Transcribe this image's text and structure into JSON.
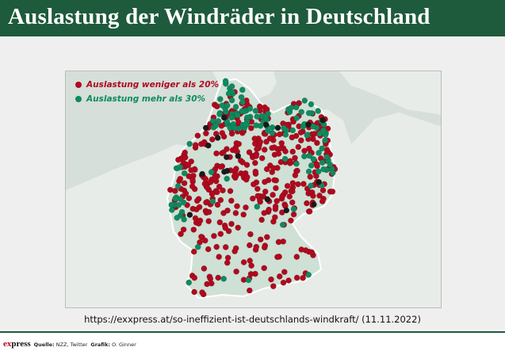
{
  "header": {
    "title": "Auslastung der Windräder in Deutschland"
  },
  "legend": [
    {
      "label": "Auslastung weniger als 20%",
      "color": "#b0091e"
    },
    {
      "label": "Auslastung mehr als 30%",
      "color": "#0f8a5f"
    }
  ],
  "colors": {
    "brand_green": "#1e5a3c",
    "low_utilization": "#b0091e",
    "high_utilization": "#0f8a5f",
    "germany_fill": "#cfe0d5",
    "sea": "#d6dfd9",
    "neighbor_land": "#e8ece9"
  },
  "source_url": "https://exxpress.at/so-ineffizient-ist-deutschlands-windkraft/ (11.11.2022)",
  "footer": {
    "brand_prefix": "ex",
    "brand_suffix": "press",
    "source_label": "Quelle:",
    "source_value": "NZZ, Twitter",
    "graphic_label": "Grafik:",
    "graphic_value": "O. Ginner"
  }
}
